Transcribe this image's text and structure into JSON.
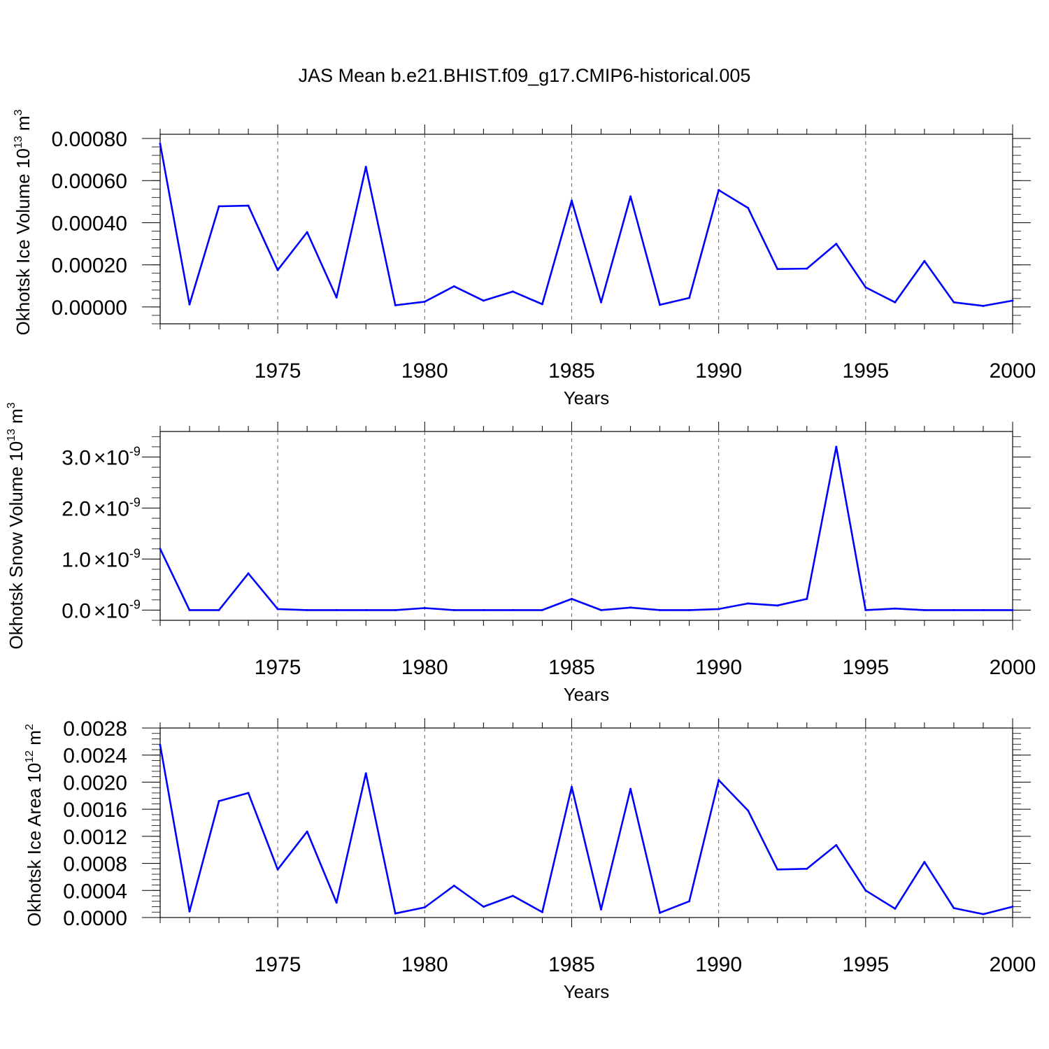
{
  "title": "JAS Mean b.e21.BHIST.f09_g17.CMIP6-historical.005",
  "chart_data": [
    {
      "type": "line",
      "ylabel": "Okhotsk Ice Volume 10",
      "ylabel_exp": "13",
      "ylabel_unit": " m",
      "ylabel_unit_exp": "3",
      "xlabel": "Years",
      "xlim": [
        1971,
        2000
      ],
      "ylim": [
        -8e-05,
        0.00082
      ],
      "yticks": [
        0.0,
        0.0002,
        0.0004,
        0.0006,
        0.0008
      ],
      "ytick_labels": [
        "0.00000",
        "0.00020",
        "0.00040",
        "0.00060",
        "0.00080"
      ],
      "xticks": [
        1975,
        1980,
        1985,
        1990,
        1995,
        2000
      ],
      "xtick_labels": [
        "1975",
        "1980",
        "1985",
        "1990",
        "1995",
        "2000"
      ],
      "x": [
        1971,
        1972,
        1973,
        1974,
        1975,
        1976,
        1977,
        1978,
        1979,
        1980,
        1981,
        1982,
        1983,
        1984,
        1985,
        1986,
        1987,
        1988,
        1989,
        1990,
        1991,
        1992,
        1993,
        1994,
        1995,
        1996,
        1997,
        1998,
        1999,
        2000
      ],
      "values": [
        0.000775,
        1.2e-05,
        0.000478,
        0.000481,
        0.000175,
        0.000355,
        4.5e-05,
        0.000665,
        8e-06,
        2.5e-05,
        9.8e-05,
        3e-05,
        7.3e-05,
        1.3e-05,
        0.000505,
        2.2e-05,
        0.000525,
        1e-05,
        4.3e-05,
        0.000555,
        0.00047,
        0.00018,
        0.000182,
        0.0003,
        9.3e-05,
        2.2e-05,
        0.000218,
        2.2e-05,
        5e-06,
        3e-05
      ],
      "color": "#0000ff",
      "grid_years": [
        1975,
        1980,
        1985,
        1990,
        1995
      ]
    },
    {
      "type": "line",
      "ylabel": "Okhotsk Snow Volume 10",
      "ylabel_exp": "13",
      "ylabel_unit": " m",
      "ylabel_unit_exp": "3",
      "xlabel": "Years",
      "xlim": [
        1971,
        2000
      ],
      "ylim": [
        -0.2,
        3.5
      ],
      "y_multiplier_label": "10",
      "y_multiplier_exp": "-9",
      "yticks": [
        0.0,
        1.0,
        2.0,
        3.0
      ],
      "ytick_labels": [
        "0.0",
        "1.0",
        "2.0",
        "3.0"
      ],
      "xticks": [
        1975,
        1980,
        1985,
        1990,
        1995,
        2000
      ],
      "xtick_labels": [
        "1975",
        "1980",
        "1985",
        "1990",
        "1995",
        "2000"
      ],
      "x": [
        1971,
        1972,
        1973,
        1974,
        1975,
        1976,
        1977,
        1978,
        1979,
        1980,
        1981,
        1982,
        1983,
        1984,
        1985,
        1986,
        1987,
        1988,
        1989,
        1990,
        1991,
        1992,
        1993,
        1994,
        1995,
        1996,
        1997,
        1998,
        1999,
        2000
      ],
      "values": [
        1.2,
        0.0,
        0.0,
        0.72,
        0.02,
        0.0,
        0.0,
        0.0,
        0.0,
        0.04,
        0.0,
        0.0,
        0.0,
        0.0,
        0.22,
        0.0,
        0.05,
        0.0,
        0.0,
        0.02,
        0.13,
        0.09,
        0.22,
        3.2,
        0.0,
        0.03,
        0.0,
        0.0,
        0.0,
        0.0
      ],
      "color": "#0000ff",
      "grid_years": [
        1975,
        1980,
        1985,
        1990,
        1995
      ]
    },
    {
      "type": "line",
      "ylabel": "Okhotsk Ice Area 10",
      "ylabel_exp": "12",
      "ylabel_unit": " m",
      "ylabel_unit_exp": "2",
      "xlabel": "Years",
      "xlim": [
        1971,
        2000
      ],
      "ylim": [
        0.0,
        0.0028
      ],
      "yticks": [
        0.0,
        0.0004,
        0.0008,
        0.0012,
        0.0016,
        0.002,
        0.0024,
        0.0028
      ],
      "ytick_labels": [
        "0.0000",
        "0.0004",
        "0.0008",
        "0.0012",
        "0.0016",
        "0.0020",
        "0.0024",
        "0.0028"
      ],
      "xticks": [
        1975,
        1980,
        1985,
        1990,
        1995,
        2000
      ],
      "xtick_labels": [
        "1975",
        "1980",
        "1985",
        "1990",
        "1995",
        "2000"
      ],
      "x": [
        1971,
        1972,
        1973,
        1974,
        1975,
        1976,
        1977,
        1978,
        1979,
        1980,
        1981,
        1982,
        1983,
        1984,
        1985,
        1986,
        1987,
        1988,
        1989,
        1990,
        1991,
        1992,
        1993,
        1994,
        1995,
        1996,
        1997,
        1998,
        1999,
        2000
      ],
      "values": [
        0.00255,
        9e-05,
        0.00172,
        0.00184,
        0.00071,
        0.00127,
        0.00022,
        0.00213,
        6e-05,
        0.00015,
        0.00047,
        0.00016,
        0.00032,
        8e-05,
        0.00193,
        0.00012,
        0.0019,
        7e-05,
        0.00024,
        0.00203,
        0.00158,
        0.00071,
        0.00072,
        0.00107,
        0.0004,
        0.00013,
        0.00082,
        0.00014,
        5e-05,
        0.00016
      ],
      "color": "#0000ff",
      "grid_years": [
        1975,
        1980,
        1985,
        1990,
        1995
      ]
    }
  ]
}
